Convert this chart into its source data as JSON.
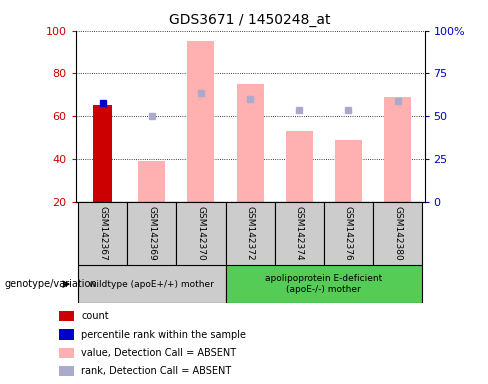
{
  "title": "GDS3671 / 1450248_at",
  "samples": [
    "GSM142367",
    "GSM142369",
    "GSM142370",
    "GSM142372",
    "GSM142374",
    "GSM142376",
    "GSM142380"
  ],
  "count_values": [
    65,
    null,
    null,
    null,
    null,
    null,
    null
  ],
  "percentile_rank": [
    66,
    null,
    null,
    null,
    null,
    null,
    null
  ],
  "value_absent": [
    null,
    39,
    95,
    75,
    53,
    49,
    69
  ],
  "rank_absent": [
    null,
    60,
    71,
    68,
    63,
    63,
    67
  ],
  "ylim": [
    20,
    100
  ],
  "yticks": [
    20,
    40,
    60,
    80,
    100
  ],
  "right_yticks": [
    0,
    25,
    50,
    75,
    100
  ],
  "right_ytick_labels": [
    "0",
    "25",
    "50",
    "75",
    "100%"
  ],
  "group1_label": "wildtype (apoE+/+) mother",
  "group2_label": "apolipoprotein E-deficient\n(apoE-/-) mother",
  "group1_samples": [
    0,
    1,
    2
  ],
  "group2_samples": [
    3,
    4,
    5,
    6
  ],
  "bar_bottom": 20,
  "count_color": "#cc0000",
  "percentile_color": "#0000cc",
  "value_absent_color": "#ffb0b0",
  "rank_absent_color": "#aaaacc",
  "group1_bg": "#cccccc",
  "group2_bg": "#55cc55",
  "axis_label_color_left": "#cc0000",
  "axis_label_color_right": "#0000cc",
  "genotype_label": "genotype/variation",
  "legend_items": [
    {
      "label": "count",
      "color": "#cc0000"
    },
    {
      "label": "percentile rank within the sample",
      "color": "#0000cc"
    },
    {
      "label": "value, Detection Call = ABSENT",
      "color": "#ffb0b0"
    },
    {
      "label": "rank, Detection Call = ABSENT",
      "color": "#aaaacc"
    }
  ]
}
